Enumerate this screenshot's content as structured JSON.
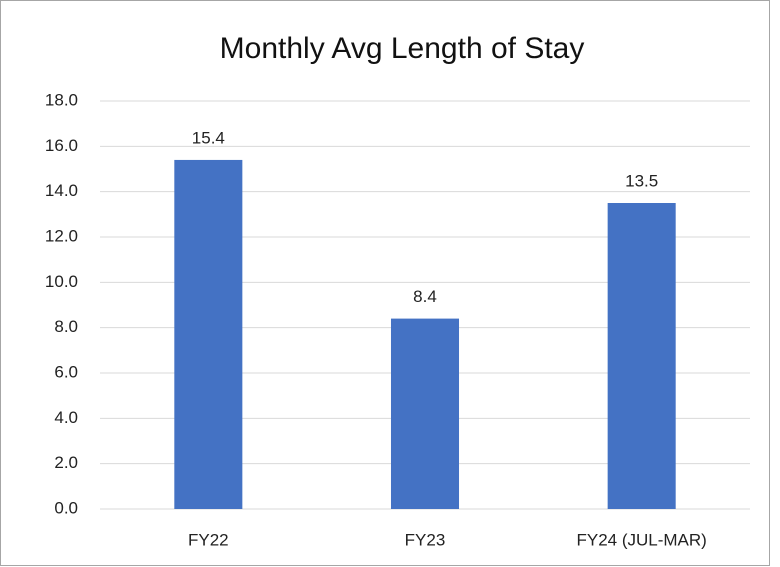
{
  "chart_data": {
    "type": "bar",
    "title": "Monthly Avg Length of Stay",
    "categories": [
      "FY22",
      "FY23",
      "FY24 (JUL-MAR)"
    ],
    "values": [
      15.4,
      8.4,
      13.5
    ],
    "color": "#4472c4",
    "ylim": [
      0,
      18
    ],
    "yticks": [
      {
        "value": 0,
        "label": "0.0"
      },
      {
        "value": 2,
        "label": "2.0"
      },
      {
        "value": 4,
        "label": "4.0"
      },
      {
        "value": 6,
        "label": "6.0"
      },
      {
        "value": 8,
        "label": "8.0"
      },
      {
        "value": 10,
        "label": "10.0"
      },
      {
        "value": 12,
        "label": "12.0"
      },
      {
        "value": 14,
        "label": "14.0"
      },
      {
        "value": 16,
        "label": "16.0"
      },
      {
        "value": 18,
        "label": "18.0"
      }
    ],
    "grid": true
  }
}
